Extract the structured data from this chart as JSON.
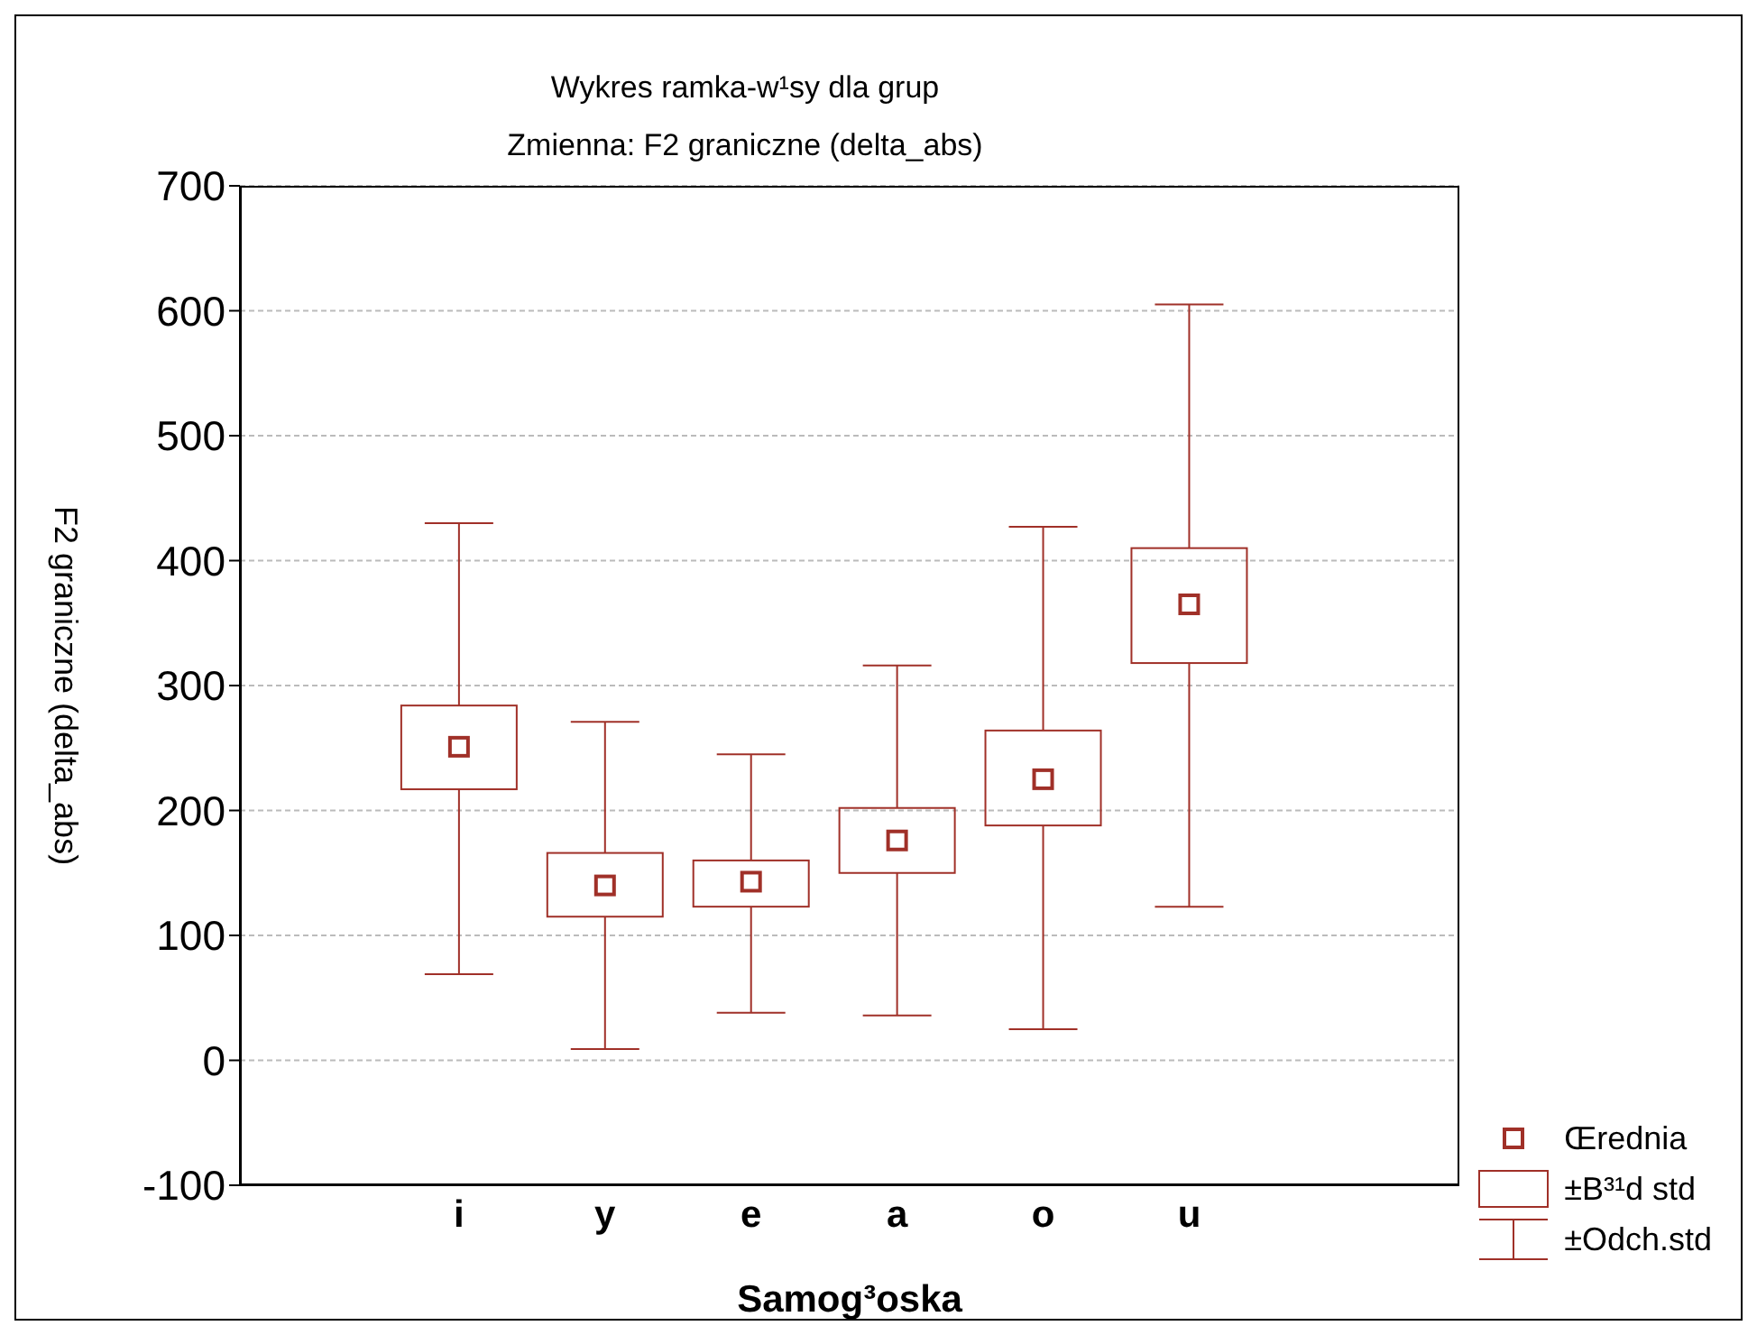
{
  "chart_data": {
    "type": "box",
    "title": "Wykres ramka-w¹sy dla grup",
    "subtitle": "Zmienna:  F2 graniczne (delta_abs)",
    "xlabel": "Samog³oska",
    "ylabel": "F2 graniczne (delta_abs)",
    "categories": [
      "i",
      "y",
      "e",
      "a",
      "o",
      "u"
    ],
    "boxes": [
      {
        "low": 69,
        "q1": 217,
        "median": 251,
        "q3": 284,
        "high": 430
      },
      {
        "low": 9,
        "q1": 115,
        "median": 140,
        "q3": 166,
        "high": 271
      },
      {
        "low": 38,
        "q1": 123,
        "median": 143,
        "q3": 160,
        "high": 245
      },
      {
        "low": 36,
        "q1": 150,
        "median": 176,
        "q3": 202,
        "high": 316
      },
      {
        "low": 25,
        "q1": 188,
        "median": 225,
        "q3": 264,
        "high": 427
      },
      {
        "low": 123,
        "q1": 318,
        "median": 365,
        "q3": 410,
        "high": 605
      }
    ],
    "color": "#a03028",
    "ylim": [
      -100,
      700
    ],
    "yticks": [
      -100,
      0,
      100,
      200,
      300,
      400,
      500,
      600,
      700
    ],
    "grid": "y",
    "marker": "square",
    "annotations": [
      "Œrednia",
      "±B³¹d std",
      "±Odch.std"
    ]
  }
}
